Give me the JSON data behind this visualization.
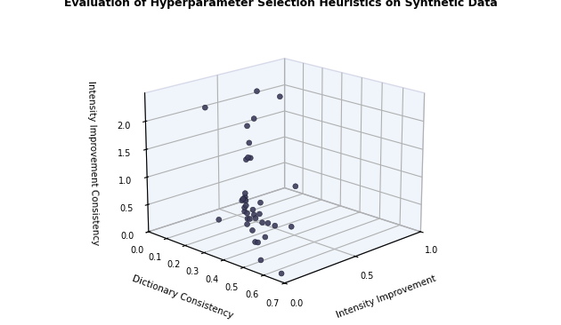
{
  "title": "Evaluation of Hyperparameter Selection Heuristics on Synthetic Data",
  "xlabel": "Intensity Improvement",
  "ylabel": "Dictionary Consistency",
  "zlabel": "Intensity Improvement Consistency",
  "xlim": [
    0.0,
    1.0
  ],
  "ylim": [
    0.0,
    0.7
  ],
  "zlim": [
    0.0,
    2.5
  ],
  "xticks": [
    0.0,
    0.5,
    1.0
  ],
  "yticks": [
    0.0,
    0.1,
    0.2,
    0.3,
    0.4,
    0.5,
    0.6,
    0.7
  ],
  "zticks": [
    0.0,
    0.5,
    1.0,
    1.5,
    2.0
  ],
  "points_xiz": [
    [
      0.05,
      0.65,
      0.05
    ],
    [
      0.05,
      0.55,
      0.15
    ],
    [
      0.1,
      0.55,
      0.75
    ],
    [
      0.1,
      0.5,
      0.35
    ],
    [
      0.15,
      0.5,
      0.4
    ],
    [
      0.15,
      0.45,
      0.25
    ],
    [
      0.2,
      0.45,
      0.55
    ],
    [
      0.2,
      0.4,
      0.35
    ],
    [
      0.25,
      0.4,
      0.6
    ],
    [
      0.25,
      0.38,
      0.5
    ],
    [
      0.25,
      0.35,
      0.45
    ],
    [
      0.28,
      0.35,
      0.5
    ],
    [
      0.3,
      0.33,
      0.55
    ],
    [
      0.3,
      0.3,
      0.45
    ],
    [
      0.3,
      0.3,
      0.25
    ],
    [
      0.32,
      0.28,
      0.55
    ],
    [
      0.33,
      0.28,
      0.3
    ],
    [
      0.35,
      0.25,
      0.45
    ],
    [
      0.35,
      0.25,
      0.38
    ],
    [
      0.38,
      0.22,
      0.55
    ],
    [
      0.4,
      0.22,
      0.5
    ],
    [
      0.4,
      0.2,
      0.48
    ],
    [
      0.42,
      0.2,
      0.48
    ],
    [
      0.45,
      0.18,
      0.55
    ],
    [
      0.45,
      0.18,
      0.48
    ],
    [
      0.5,
      0.16,
      1.15
    ],
    [
      0.5,
      0.15,
      1.1
    ],
    [
      0.55,
      0.13,
      1.35
    ],
    [
      0.55,
      0.12,
      1.65
    ],
    [
      0.6,
      0.12,
      1.75
    ],
    [
      0.6,
      0.1,
      1.0
    ],
    [
      0.65,
      0.1,
      2.2
    ],
    [
      0.7,
      0.08,
      0.05
    ],
    [
      0.55,
      0.35,
      0.05
    ],
    [
      0.5,
      0.3,
      0.05
    ],
    [
      0.3,
      0.15,
      0.15
    ],
    [
      0.28,
      0.1,
      2.15
    ],
    [
      0.85,
      0.08,
      1.95
    ],
    [
      1.0,
      0.06,
      0.1
    ]
  ],
  "point_color": "#3d3d5c",
  "point_size": 18,
  "pane_color_xy": "#d8e8f5",
  "pane_color_xz": "#d8e8f5",
  "pane_color_yz": "#d8e8f5",
  "figure_bg": "#ffffff",
  "elev": 18,
  "azim": 225
}
